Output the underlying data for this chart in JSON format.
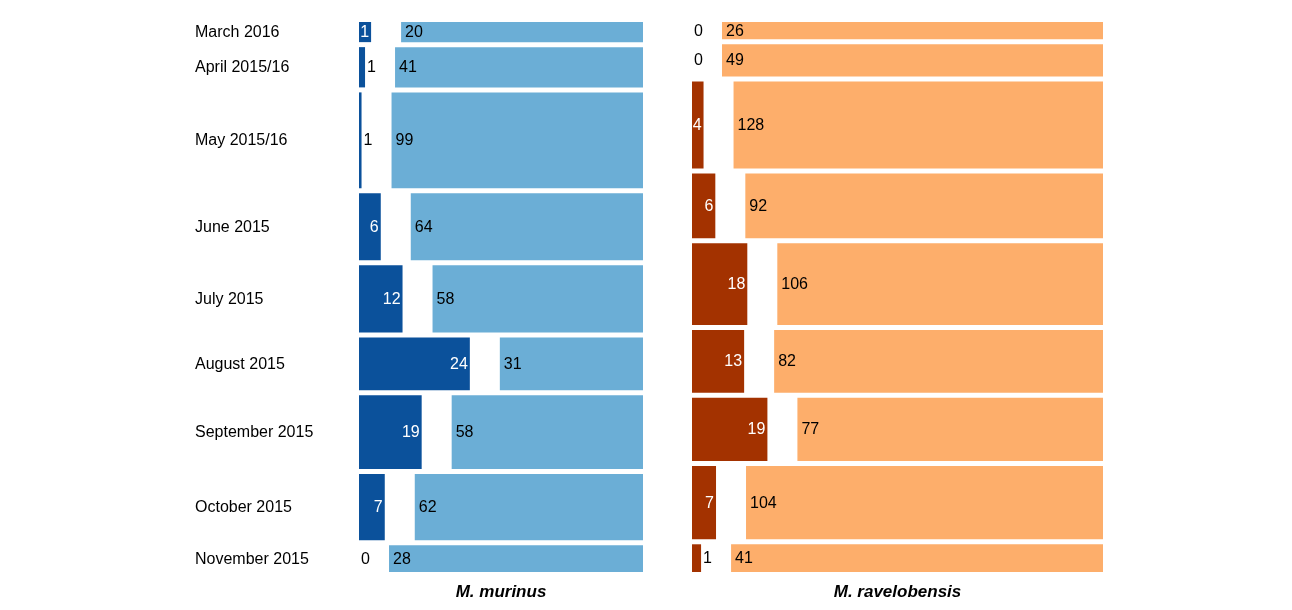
{
  "chart_data": {
    "type": "other",
    "data_labels": true,
    "annotations": [
      "M. murinus",
      "M. ravelobensis"
    ],
    "categories": [
      "March 2016",
      "April 2015/16",
      "May 2015/16",
      "June 2015",
      "July 2015",
      "August 2015",
      "September 2015",
      "October 2015",
      "November 2015"
    ],
    "series": [
      {
        "color": "#0b519b",
        "values": [
          1,
          1,
          1,
          6,
          12,
          24,
          19,
          7,
          0
        ]
      },
      {
        "color": "#6baed6",
        "values": [
          20,
          41,
          99,
          64,
          58,
          31,
          58,
          62,
          28
        ]
      },
      {
        "color": "#a33200",
        "values": [
          0,
          0,
          4,
          6,
          18,
          13,
          19,
          7,
          1
        ]
      },
      {
        "color": "#fdae6b",
        "values": [
          26,
          49,
          128,
          92,
          106,
          82,
          77,
          104,
          41
        ]
      }
    ]
  }
}
